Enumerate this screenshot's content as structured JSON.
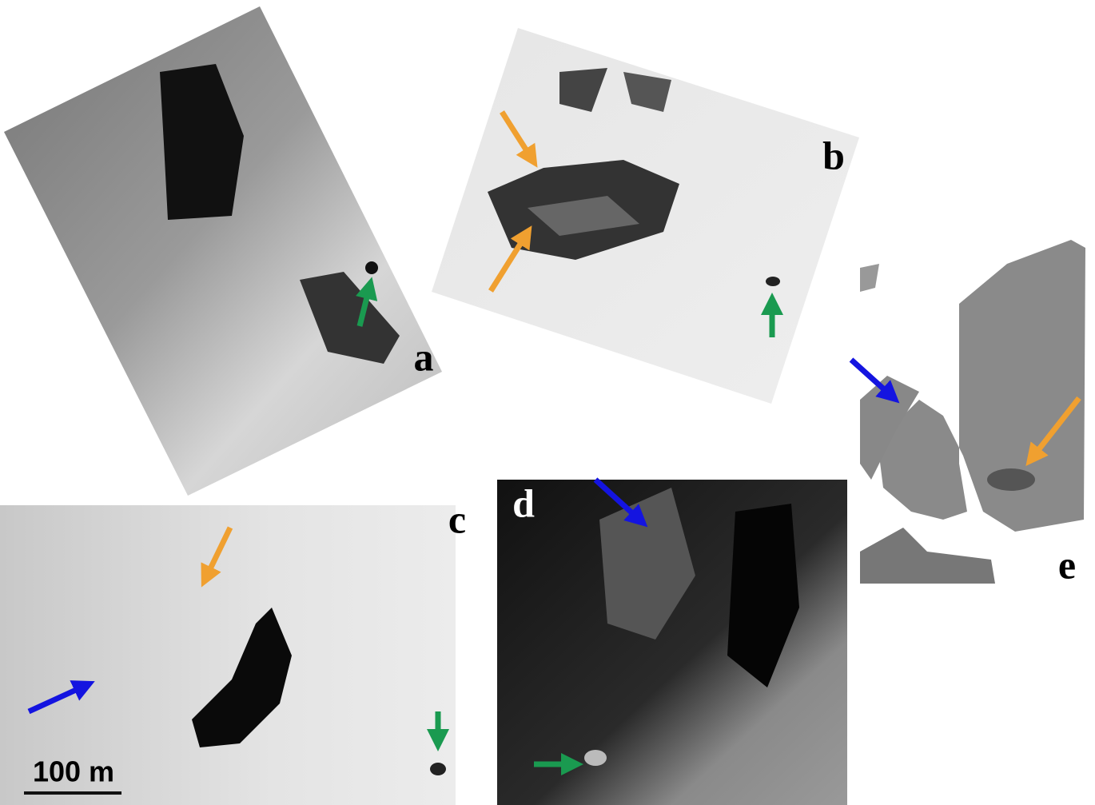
{
  "panels": [
    {
      "label": "a"
    },
    {
      "label": "b"
    },
    {
      "label": "c"
    },
    {
      "label": "d"
    },
    {
      "label": "e"
    }
  ],
  "scale_bar": {
    "label": "100 m"
  }
}
